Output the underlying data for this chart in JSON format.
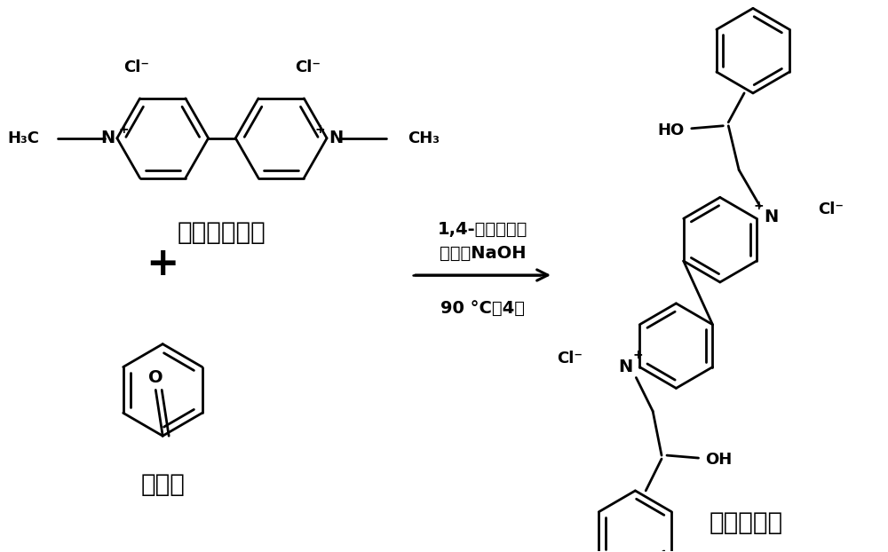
{
  "background_color": "#ffffff",
  "reactant1_label": "二氯甲基紫精",
  "reactant2_label": "苯甲醛",
  "product_label": "模型化合物",
  "conditions_line1": "1,4-二氧六环，",
  "conditions_line2": "甲醇，NaOH",
  "conditions_line3": "90 °C，4天",
  "plus_sign": "+",
  "text_color": "#000000",
  "font_size_label": 20,
  "font_size_conditions": 14,
  "font_size_atom": 13,
  "fig_width": 10.0,
  "fig_height": 6.22,
  "lw": 2.0
}
